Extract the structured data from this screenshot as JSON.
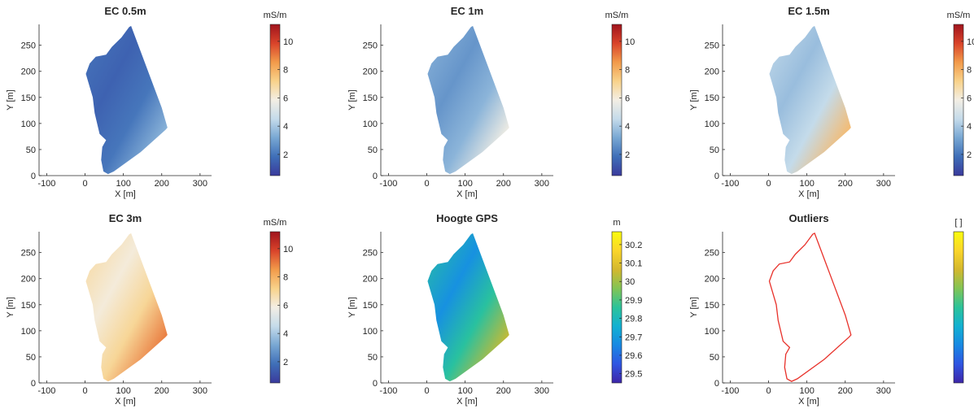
{
  "chart_data": [
    {
      "type": "heatmap",
      "title": "EC 0.5m",
      "xlabel": "X [m]",
      "ylabel": "Y [m]",
      "xlim": [
        -120,
        330
      ],
      "ylim": [
        0,
        290
      ],
      "xticks": [
        "-100",
        "0",
        "100",
        "200",
        "300"
      ],
      "yticks": [
        "0",
        "50",
        "100",
        "150",
        "200",
        "250"
      ],
      "colorbar": {
        "unit": "mS/m",
        "colormap": "blue-white-red",
        "range": [
          0.5,
          11.2
        ],
        "ticks": [
          "2",
          "4",
          "6",
          "8",
          "10"
        ]
      },
      "dominant_value": 2.0,
      "field_values": {
        "min": 1,
        "max": 5
      }
    },
    {
      "type": "heatmap",
      "title": "EC 1m",
      "xlabel": "X [m]",
      "ylabel": "Y [m]",
      "xlim": [
        -120,
        330
      ],
      "ylim": [
        0,
        290
      ],
      "xticks": [
        "-100",
        "0",
        "100",
        "200",
        "300"
      ],
      "yticks": [
        "0",
        "50",
        "100",
        "150",
        "200",
        "250"
      ],
      "colorbar": {
        "unit": "mS/m",
        "colormap": "blue-white-red",
        "range": [
          0.5,
          11.2
        ],
        "ticks": [
          "2",
          "4",
          "6",
          "8",
          "10"
        ]
      },
      "dominant_value": 3.5,
      "field_values": {
        "min": 2,
        "max": 8
      }
    },
    {
      "type": "heatmap",
      "title": "EC 1.5m",
      "xlabel": "X [m]",
      "ylabel": "Y [m]",
      "xlim": [
        -120,
        330
      ],
      "ylim": [
        0,
        290
      ],
      "xticks": [
        "-100",
        "0",
        "100",
        "200",
        "300"
      ],
      "yticks": [
        "0",
        "50",
        "100",
        "150",
        "200",
        "250"
      ],
      "colorbar": {
        "unit": "mS/m",
        "colormap": "blue-white-red",
        "range": [
          0.5,
          11.2
        ],
        "ticks": [
          "2",
          "4",
          "6",
          "8",
          "10"
        ]
      },
      "dominant_value": 4.5,
      "field_values": {
        "min": 3,
        "max": 11
      }
    },
    {
      "type": "heatmap",
      "title": "EC 3m",
      "xlabel": "X [m]",
      "ylabel": "Y [m]",
      "xlim": [
        -120,
        330
      ],
      "ylim": [
        0,
        290
      ],
      "xticks": [
        "-100",
        "0",
        "100",
        "200",
        "300"
      ],
      "yticks": [
        "0",
        "50",
        "100",
        "150",
        "200",
        "250"
      ],
      "colorbar": {
        "unit": "mS/m",
        "colormap": "blue-white-red",
        "range": [
          0.5,
          11.2
        ],
        "ticks": [
          "2",
          "4",
          "6",
          "8",
          "10"
        ]
      },
      "dominant_value": 7.0,
      "field_values": {
        "min": 5,
        "max": 11
      }
    },
    {
      "type": "heatmap",
      "title": "Hoogte GPS",
      "xlabel": "X [m]",
      "ylabel": "Y [m]",
      "xlim": [
        -120,
        330
      ],
      "ylim": [
        0,
        290
      ],
      "xticks": [
        "-100",
        "0",
        "100",
        "200",
        "300"
      ],
      "yticks": [
        "0",
        "50",
        "100",
        "150",
        "200",
        "250"
      ],
      "colorbar": {
        "unit": "m",
        "colormap": "parula",
        "range": [
          29.45,
          30.27
        ],
        "ticks": [
          "29.5",
          "29.6",
          "29.7",
          "29.8",
          "29.9",
          "30",
          "30.1",
          "30.2"
        ]
      },
      "dominant_value": 29.85,
      "field_values": {
        "min": 29.5,
        "max": 30.25
      }
    },
    {
      "type": "heatmap",
      "title": "Outliers",
      "xlabel": "X [m]",
      "ylabel": "Y [m]",
      "xlim": [
        -120,
        330
      ],
      "ylim": [
        0,
        290
      ],
      "xticks": [
        "-100",
        "0",
        "100",
        "200",
        "300"
      ],
      "yticks": [
        "0",
        "50",
        "100",
        "150",
        "200",
        "250"
      ],
      "colorbar": {
        "unit": "[ ]",
        "colormap": "parula",
        "range": [
          0,
          1
        ],
        "ticks": []
      },
      "outline_only": true,
      "outline_color": "#e8312a"
    }
  ],
  "field_boundary": [
    [
      115,
      285
    ],
    [
      120,
      287
    ],
    [
      200,
      130
    ],
    [
      215,
      92
    ],
    [
      210,
      88
    ],
    [
      145,
      45
    ],
    [
      75,
      8
    ],
    [
      60,
      3
    ],
    [
      48,
      8
    ],
    [
      42,
      30
    ],
    [
      45,
      55
    ],
    [
      55,
      68
    ],
    [
      38,
      80
    ],
    [
      25,
      120
    ],
    [
      20,
      150
    ],
    [
      2,
      195
    ],
    [
      12,
      215
    ],
    [
      28,
      228
    ],
    [
      55,
      232
    ],
    [
      70,
      247
    ],
    [
      95,
      265
    ]
  ]
}
